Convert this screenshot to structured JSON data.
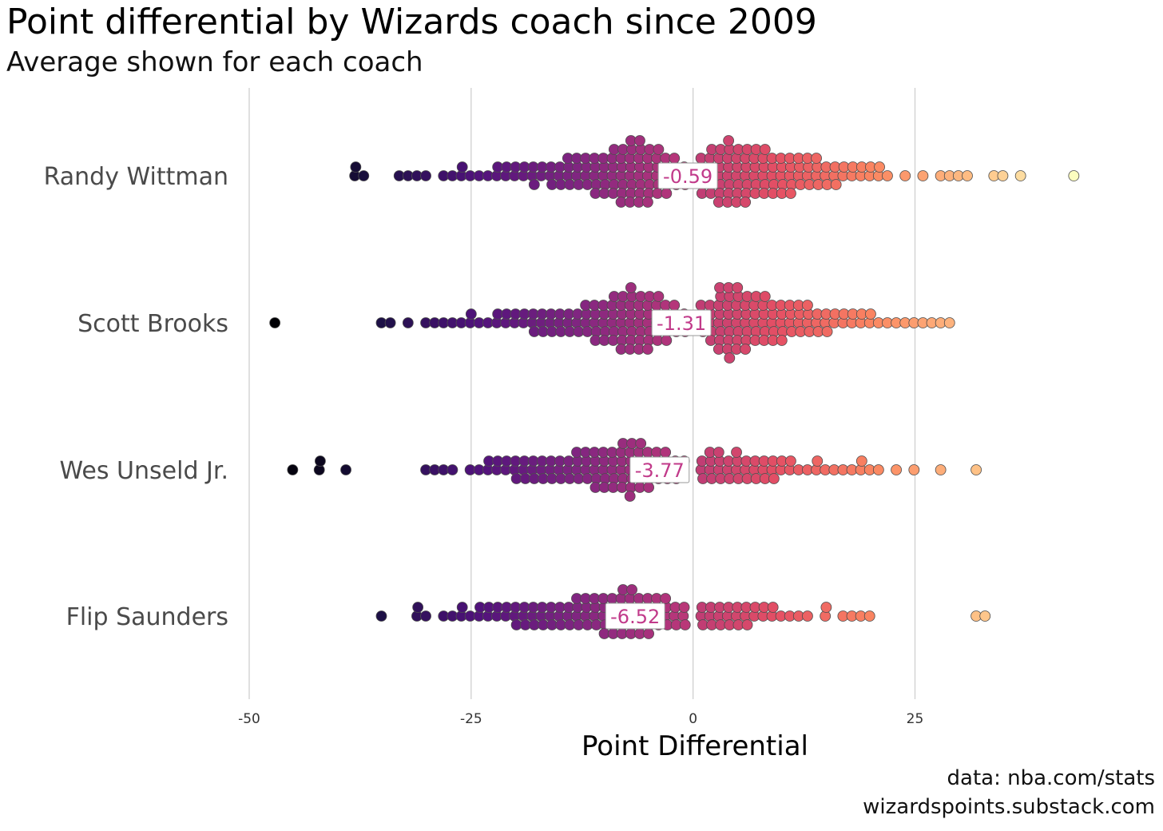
{
  "title": "Point differential by Wizards coach since 2009",
  "subtitle": "Average shown for each coach",
  "caption": [
    "data: nba.com/stats",
    "wizardspoints.substack.com"
  ],
  "chart_data": {
    "type": "scatter",
    "subtype": "beeswarm",
    "title": "Point differential by Wizards coach since 2009",
    "subtitle": "Average shown for each coach",
    "xlabel": "Point Differential",
    "ylabel": "",
    "xlim": [
      -50,
      47
    ],
    "xticks": [
      -50,
      -25,
      0,
      25
    ],
    "xtick_labels": [
      "-50",
      "-25",
      "0",
      "25"
    ],
    "grid": "vertical major gridlines",
    "legend": "none",
    "color_scale": "magma, by point differential (dark purple low, pale yellow high)",
    "marker_edge_color": "#555555",
    "average_label_color": "#c13a8a",
    "coaches": [
      {
        "name": "Randy Wittman",
        "average": -0.59,
        "average_label": "-0.59",
        "values": [
          -38,
          -38,
          -37,
          -33,
          -32,
          -31,
          -30,
          -28,
          -27,
          -26,
          -26,
          -25,
          -24,
          -23,
          -22,
          -22,
          -21,
          -21,
          -20,
          -20,
          -19,
          -19,
          -18,
          -18,
          -18,
          -17,
          -17,
          -16,
          -16,
          -16,
          -15,
          -15,
          -15,
          -14,
          -14,
          -14,
          -14,
          -13,
          -13,
          -13,
          -13,
          -12,
          -12,
          -12,
          -12,
          -11,
          -11,
          -11,
          -11,
          -11,
          -10,
          -10,
          -10,
          -10,
          -10,
          -9,
          -9,
          -9,
          -9,
          -9,
          -9,
          -8,
          -8,
          -8,
          -8,
          -8,
          -8,
          -8,
          -7,
          -7,
          -7,
          -7,
          -7,
          -7,
          -7,
          -7,
          -6,
          -6,
          -6,
          -6,
          -6,
          -6,
          -6,
          -6,
          -5,
          -5,
          -5,
          -5,
          -5,
          -5,
          -5,
          -4,
          -4,
          -4,
          -4,
          -4,
          -4,
          -3,
          -3,
          -3,
          -3,
          -3,
          -2,
          -2,
          -2,
          -2,
          -1,
          -1,
          -1,
          1,
          1,
          1,
          1,
          1,
          2,
          2,
          2,
          2,
          2,
          2,
          3,
          3,
          3,
          3,
          3,
          3,
          3,
          4,
          4,
          4,
          4,
          4,
          4,
          4,
          4,
          5,
          5,
          5,
          5,
          5,
          5,
          5,
          6,
          6,
          6,
          6,
          6,
          6,
          6,
          7,
          7,
          7,
          7,
          7,
          7,
          8,
          8,
          8,
          8,
          8,
          8,
          9,
          9,
          9,
          9,
          9,
          10,
          10,
          10,
          10,
          10,
          11,
          11,
          11,
          11,
          11,
          12,
          12,
          12,
          12,
          13,
          13,
          13,
          13,
          14,
          14,
          14,
          14,
          15,
          15,
          15,
          16,
          16,
          16,
          17,
          17,
          18,
          18,
          19,
          19,
          20,
          20,
          21,
          21,
          22,
          24,
          26,
          28,
          29,
          30,
          31,
          34,
          35,
          37,
          43
        ]
      },
      {
        "name": "Scott Brooks",
        "average": -1.31,
        "average_label": "-1.31",
        "values": [
          -47,
          -35,
          -34,
          -32,
          -30,
          -29,
          -28,
          -27,
          -26,
          -25,
          -25,
          -24,
          -23,
          -22,
          -22,
          -21,
          -21,
          -20,
          -20,
          -19,
          -19,
          -18,
          -18,
          -18,
          -17,
          -17,
          -17,
          -16,
          -16,
          -16,
          -15,
          -15,
          -15,
          -14,
          -14,
          -14,
          -13,
          -13,
          -13,
          -12,
          -12,
          -12,
          -12,
          -11,
          -11,
          -11,
          -11,
          -11,
          -10,
          -10,
          -10,
          -10,
          -10,
          -9,
          -9,
          -9,
          -9,
          -9,
          -9,
          -8,
          -8,
          -8,
          -8,
          -8,
          -8,
          -8,
          -7,
          -7,
          -7,
          -7,
          -7,
          -7,
          -7,
          -7,
          -6,
          -6,
          -6,
          -6,
          -6,
          -6,
          -6,
          -5,
          -5,
          -5,
          -5,
          -5,
          -5,
          -5,
          -4,
          -4,
          -4,
          -4,
          -4,
          -4,
          -3,
          -3,
          -3,
          -3,
          -3,
          -2,
          -2,
          -2,
          -2,
          -1,
          -1,
          -1,
          1,
          1,
          1,
          1,
          2,
          2,
          2,
          2,
          2,
          3,
          3,
          3,
          3,
          3,
          3,
          3,
          3,
          4,
          4,
          4,
          4,
          4,
          4,
          4,
          4,
          4,
          5,
          5,
          5,
          5,
          5,
          5,
          5,
          5,
          6,
          6,
          6,
          6,
          6,
          6,
          6,
          7,
          7,
          7,
          7,
          7,
          7,
          8,
          8,
          8,
          8,
          8,
          8,
          9,
          9,
          9,
          9,
          9,
          10,
          10,
          10,
          10,
          10,
          11,
          11,
          11,
          11,
          12,
          12,
          12,
          12,
          13,
          13,
          13,
          13,
          14,
          14,
          14,
          15,
          15,
          15,
          16,
          16,
          17,
          17,
          18,
          18,
          19,
          19,
          20,
          20,
          21,
          22,
          23,
          24,
          25,
          26,
          27,
          28,
          29
        ]
      },
      {
        "name": "Wes Unseld Jr.",
        "average": -3.77,
        "average_label": "-3.77",
        "values": [
          -45,
          -42,
          -42,
          -39,
          -30,
          -29,
          -28,
          -27,
          -25,
          -24,
          -23,
          -23,
          -22,
          -22,
          -21,
          -21,
          -20,
          -20,
          -20,
          -19,
          -19,
          -19,
          -18,
          -18,
          -18,
          -17,
          -17,
          -17,
          -16,
          -16,
          -16,
          -15,
          -15,
          -15,
          -14,
          -14,
          -14,
          -13,
          -13,
          -13,
          -13,
          -12,
          -12,
          -12,
          -12,
          -11,
          -11,
          -11,
          -11,
          -11,
          -10,
          -10,
          -10,
          -10,
          -10,
          -9,
          -9,
          -9,
          -9,
          -9,
          -8,
          -8,
          -8,
          -8,
          -8,
          -8,
          -7,
          -7,
          -7,
          -7,
          -7,
          -7,
          -7,
          -6,
          -6,
          -6,
          -6,
          -6,
          -6,
          -5,
          -5,
          -5,
          -5,
          -5,
          -4,
          -4,
          -4,
          -4,
          -3,
          -3,
          -3,
          -3,
          -2,
          -2,
          -2,
          -1,
          -1,
          1,
          1,
          1,
          2,
          2,
          2,
          2,
          3,
          3,
          3,
          3,
          4,
          4,
          4,
          5,
          5,
          5,
          5,
          6,
          6,
          6,
          7,
          7,
          7,
          8,
          8,
          8,
          9,
          9,
          9,
          10,
          10,
          11,
          11,
          12,
          13,
          14,
          14,
          15,
          16,
          17,
          18,
          19,
          19,
          20,
          21,
          23,
          25,
          28,
          32
        ]
      },
      {
        "name": "Flip Saunders",
        "average": -6.52,
        "average_label": "-6.52",
        "values": [
          -35,
          -31,
          -31,
          -30,
          -28,
          -27,
          -26,
          -26,
          -25,
          -24,
          -24,
          -23,
          -23,
          -22,
          -22,
          -21,
          -21,
          -20,
          -20,
          -20,
          -19,
          -19,
          -19,
          -18,
          -18,
          -18,
          -17,
          -17,
          -17,
          -16,
          -16,
          -16,
          -15,
          -15,
          -15,
          -14,
          -14,
          -14,
          -13,
          -13,
          -13,
          -13,
          -12,
          -12,
          -12,
          -12,
          -11,
          -11,
          -11,
          -11,
          -10,
          -10,
          -10,
          -10,
          -10,
          -9,
          -9,
          -9,
          -9,
          -9,
          -8,
          -8,
          -8,
          -8,
          -8,
          -8,
          -7,
          -7,
          -7,
          -7,
          -7,
          -7,
          -6,
          -6,
          -6,
          -6,
          -6,
          -5,
          -5,
          -5,
          -5,
          -5,
          -4,
          -4,
          -4,
          -4,
          -3,
          -3,
          -3,
          -3,
          -2,
          -2,
          -2,
          -1,
          -1,
          -1,
          1,
          1,
          1,
          2,
          2,
          2,
          3,
          3,
          3,
          4,
          4,
          4,
          5,
          5,
          5,
          6,
          6,
          6,
          7,
          7,
          8,
          8,
          9,
          9,
          10,
          11,
          12,
          13,
          15,
          15,
          17,
          18,
          19,
          20,
          32,
          33
        ]
      }
    ]
  }
}
